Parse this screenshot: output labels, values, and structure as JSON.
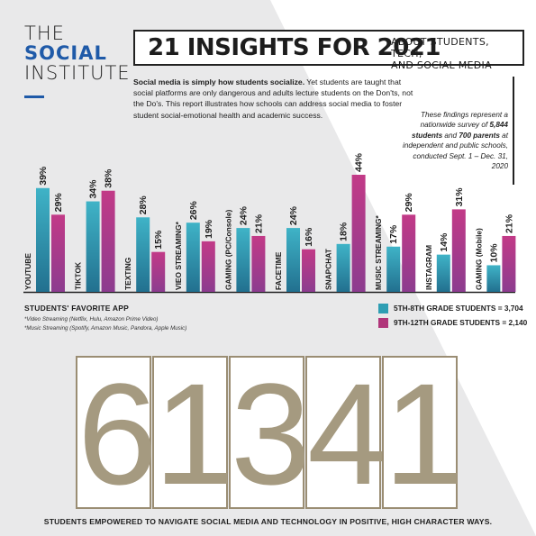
{
  "logo": {
    "line1": "THE",
    "line2": "SOCIAL",
    "line3": "INSTITUTE"
  },
  "header": {
    "title": "21 INSIGHTS FOR 2021",
    "subtitle_line1": "ABOUT STUDENTS, TECH,",
    "subtitle_line2": "AND SOCIAL MEDIA"
  },
  "intro": {
    "bold": "Social media is simply how students socialize.",
    "text": " Yet students are taught that social platforms are only dangerous and adults lecture students on the Don'ts, not the Do's. This report illustrates how schools can address social media to foster student social-emotional health and academic success."
  },
  "note": {
    "p1": "These findings represent a nationwide survey of ",
    "b1": "5,844 students",
    "p2": " and ",
    "b2": "700 parents",
    "p3": " at independent and public schools, conducted Sept. 1 – Dec. 31, 2020"
  },
  "chart_label": "STUDENTS' FAVORITE APP",
  "footnotes": [
    "*Video Streaming (Netflix, Hulu, Amazon Prime Video)",
    "*Music Streaming (Spotify, Amazon Music, Pandora, Apple Music)"
  ],
  "legend": [
    {
      "label": "5TH-8TH GRADE STUDENTS = 3,704",
      "color": "#2e9eb3"
    },
    {
      "label": "9TH-12TH GRADE STUDENTS = 2,140",
      "color": "#b0357a"
    }
  ],
  "colors": {
    "teal": "#2e9eb3",
    "magenta": "#b0357a"
  },
  "chart_data": {
    "type": "bar",
    "categories": [
      "YOUTUBE",
      "TIKTOK",
      "TEXTING",
      "VIEO STREAMING*",
      "GAMING (PC/Console)",
      "FACETIME",
      "SNAPCHAT",
      "MUSIC STREAMING*",
      "INSTAGRAM",
      "GAMING (Mobile)"
    ],
    "series": [
      {
        "name": "5TH-8TH GRADE STUDENTS = 3,704",
        "values": [
          39,
          34,
          28,
          26,
          24,
          24,
          18,
          17,
          14,
          10
        ]
      },
      {
        "name": "9TH-12TH GRADE STUDENTS = 2,140",
        "values": [
          29,
          38,
          15,
          19,
          21,
          16,
          44,
          29,
          31,
          21
        ]
      }
    ],
    "value_suffix": "%",
    "ylim": [
      0,
      44
    ],
    "grid": false,
    "legend_position": "bottom-right"
  },
  "digits": [
    "6",
    "1",
    "3",
    "4",
    "1"
  ],
  "bottom_caption": "STUDENTS EMPOWERED TO NAVIGATE SOCIAL MEDIA AND TECHNOLOGY IN POSITIVE, HIGH CHARACTER WAYS."
}
